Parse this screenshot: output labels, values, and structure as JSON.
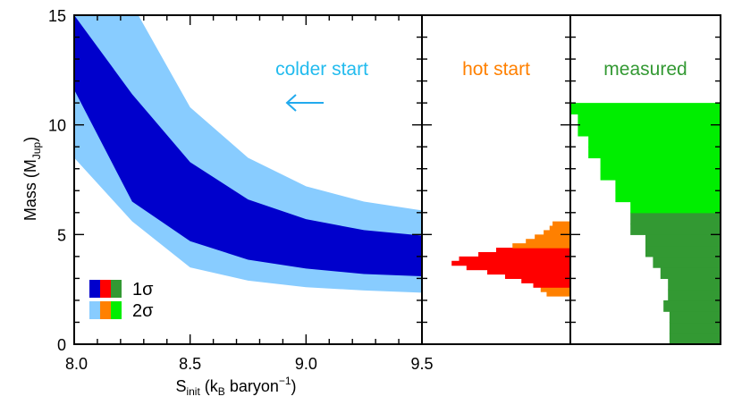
{
  "chart_data": {
    "type": "area",
    "panels": [
      {
        "name": "entropy",
        "xlabel_main": "S",
        "xlabel_sub": "init",
        "xlabel_rest_a": " (k",
        "xlabel_sub2": "B",
        "xlabel_rest_b": " baryon",
        "xlabel_sup": "−1",
        "xlabel_close": ")",
        "xlim": [
          8.0,
          9.5
        ],
        "x_ticks": [
          "8.0",
          "8.5",
          "9.0",
          "9.5"
        ],
        "annotation": "colder start",
        "x": [
          8.0,
          8.25,
          8.5,
          8.75,
          9.0,
          9.25,
          9.5
        ],
        "band_2sigma": {
          "low": [
            8.5,
            5.6,
            3.5,
            2.9,
            2.6,
            2.45,
            2.35
          ],
          "high": [
            15.5,
            15.5,
            10.8,
            8.5,
            7.2,
            6.5,
            6.1
          ]
        },
        "band_1sigma": {
          "low": [
            11.6,
            6.5,
            4.7,
            3.85,
            3.45,
            3.2,
            3.1
          ],
          "high": [
            15.0,
            11.4,
            8.3,
            6.6,
            5.7,
            5.2,
            4.95
          ]
        }
      },
      {
        "name": "hot-start",
        "annotation": "hot start",
        "bin_width": 0.2,
        "bins_mass": [
          2.2,
          2.4,
          2.6,
          2.8,
          3.0,
          3.2,
          3.4,
          3.6,
          3.8,
          4.0,
          4.2,
          4.4,
          4.6,
          4.8,
          5.0,
          5.2,
          5.4
        ],
        "bins_value": [
          0.84,
          0.8,
          0.75,
          0.67,
          0.56,
          0.44,
          0.3,
          0.2,
          0.25,
          0.38,
          0.5,
          0.61,
          0.7,
          0.76,
          0.82,
          0.86,
          0.88
        ],
        "sigma1_range": [
          2.7,
          4.4
        ]
      },
      {
        "name": "measured",
        "annotation": "measured",
        "bin_width": 0.5,
        "bins_mass": [
          0.0,
          0.5,
          1.0,
          1.5,
          2.0,
          2.5,
          3.0,
          3.5,
          4.0,
          4.5,
          5.0,
          5.5,
          6.0,
          6.5,
          7.0,
          7.5,
          8.0,
          8.5,
          9.0,
          9.5,
          10.0,
          10.5
        ],
        "bins_value": [
          0.66,
          0.66,
          0.66,
          0.62,
          0.65,
          0.65,
          0.6,
          0.55,
          0.5,
          0.5,
          0.4,
          0.4,
          0.4,
          0.3,
          0.3,
          0.2,
          0.2,
          0.12,
          0.12,
          0.05,
          0.05,
          0.0
        ],
        "sigma1_range": [
          0.0,
          6.0
        ]
      }
    ],
    "ylabel_main": "Mass (M",
    "ylabel_sub": "Jup",
    "ylabel_close": ")",
    "ylim": [
      0,
      15
    ],
    "y_ticks": [
      0,
      5,
      10,
      15
    ],
    "legend": {
      "placement": "bottom-left",
      "entries": [
        {
          "label": "1σ",
          "colors": [
            "#0000cc",
            "#ff0000",
            "#339933"
          ]
        },
        {
          "label": "2σ",
          "colors": [
            "#88ccff",
            "#ff8000",
            "#00ee00"
          ]
        }
      ]
    },
    "colors": {
      "sigma1_entropy": "#0000cc",
      "sigma2_entropy": "#88ccff",
      "sigma1_hot": "#ff0000",
      "sigma2_hot": "#ff8000",
      "sigma1_measured": "#339933",
      "sigma2_measured": "#00ee00",
      "colder_text": "#22bbee",
      "hot_text": "#ff8000",
      "measured_text": "#339933",
      "arrow": "#22aaee"
    },
    "grid": false
  }
}
